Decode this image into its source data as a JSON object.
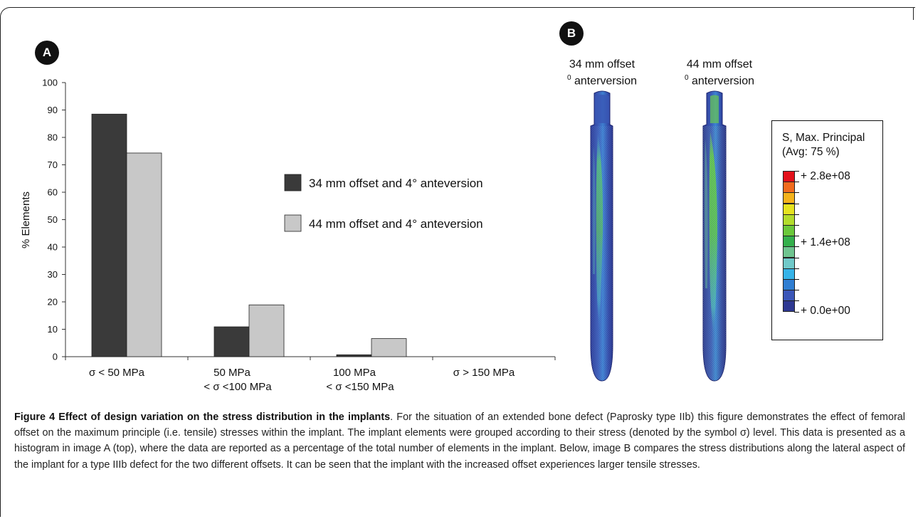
{
  "panel_a": {
    "badge": "A"
  },
  "panel_b": {
    "badge": "B",
    "implant_titles": [
      {
        "line1": "34 mm offset",
        "deg": "0",
        "line2": "anterversion"
      },
      {
        "line1": "44 mm offset",
        "deg": "0",
        "line2": "anterversion"
      }
    ],
    "contour_legend": {
      "title_line1": "S, Max. Principal",
      "title_line2": "(Avg: 75 %)",
      "labels": [
        "+ 2.8e+08",
        "+ 1.4e+08",
        "+ 0.0e+00"
      ],
      "colors": [
        "#e3111b",
        "#f26b1d",
        "#f4b21a",
        "#e6e31f",
        "#b3dc2b",
        "#6bc83a",
        "#34b04c",
        "#6fc48f",
        "#70c9c9",
        "#36b3e8",
        "#2f7ed2",
        "#3b56b8",
        "#2e3892"
      ]
    }
  },
  "chart_data": {
    "type": "bar",
    "categories": [
      "σ < 50 MPa",
      "50 MPa\n< σ <100 MPa",
      "100 MPa\n< σ <150 MPa",
      "σ > 150 MPa"
    ],
    "series": [
      {
        "name": "34 mm offset and 4° anteversion",
        "values": [
          88.5,
          10.9,
          0.7,
          0
        ],
        "color": "#3a3a3a"
      },
      {
        "name": "44 mm offset and 4° anteversion",
        "values": [
          74.3,
          18.9,
          6.6,
          0
        ],
        "color": "#c8c8c8"
      }
    ],
    "xlabel": "",
    "ylabel": "% Elements",
    "ylim": [
      0,
      100
    ],
    "yticks": [
      0,
      10,
      20,
      30,
      40,
      50,
      60,
      70,
      80,
      90,
      100
    ],
    "grid": false,
    "legend_position": "center-right"
  },
  "caption": {
    "bold": "Figure 4 Effect of design variation on the stress distribution in the implants",
    "text": ". For the situation of an extended bone defect (Paprosky type IIb) this figure demonstrates the effect of femoral offset on the maximum principle (i.e. tensile) stresses within the implant. The implant elements were grouped according to their stress (denoted by the symbol σ) level. This data is presented as a histogram in image A (top), where the data are reported as a percentage of the total number of elements in the implant. Below, image B compares the stress distributions along the lateral aspect of the implant for a type IIIb defect for the two different offsets. It can be seen that the implant with the increased offset experiences larger tensile stresses."
  }
}
